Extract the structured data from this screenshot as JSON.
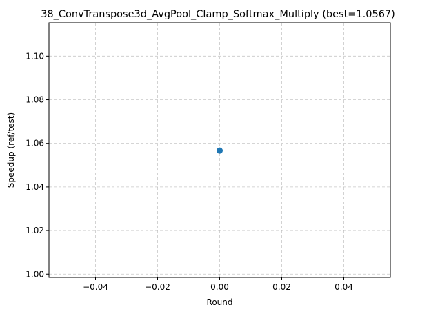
{
  "chart_data": {
    "type": "scatter",
    "title": "38_ConvTranspose3d_AvgPool_Clamp_Softmax_Multiply (best=1.0567)",
    "xlabel": "Round",
    "ylabel": "Speedup (ref/test)",
    "xlim": [
      -0.055,
      0.055
    ],
    "ylim": [
      0.9985,
      1.1153
    ],
    "x_ticks": [
      -0.04,
      -0.02,
      0.0,
      0.02,
      0.04
    ],
    "x_tick_labels": [
      "−0.04",
      "−0.02",
      "0.00",
      "0.02",
      "0.04"
    ],
    "y_ticks": [
      1.0,
      1.02,
      1.04,
      1.06,
      1.08,
      1.1
    ],
    "y_tick_labels": [
      "1.00",
      "1.02",
      "1.04",
      "1.06",
      "1.08",
      "1.10"
    ],
    "grid": true,
    "series": [
      {
        "points": [
          {
            "x": 0.0,
            "y": 1.0567
          }
        ],
        "color": "#1f77b4"
      }
    ]
  }
}
